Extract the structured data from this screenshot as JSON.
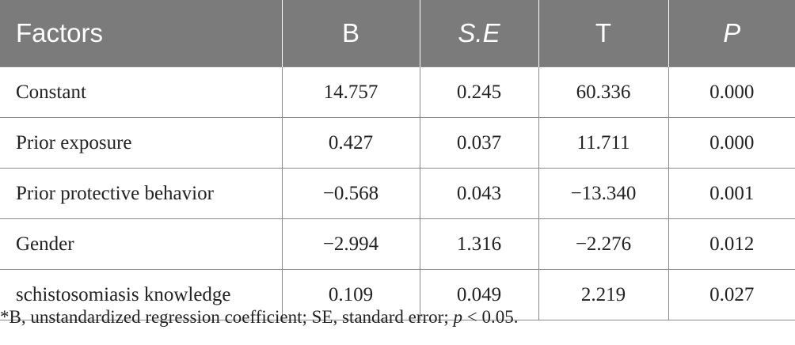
{
  "table": {
    "headers": [
      "Factors",
      "B",
      "S.E",
      "T",
      "P"
    ],
    "rows": [
      [
        "Constant",
        "14.757",
        "0.245",
        "60.336",
        "0.000"
      ],
      [
        "Prior exposure",
        "0.427",
        "0.037",
        "11.711",
        "0.000"
      ],
      [
        "Prior protective behavior",
        "−0.568",
        "0.043",
        "−13.340",
        "0.001"
      ],
      [
        "Gender",
        "−2.994",
        "1.316",
        "−2.276",
        "0.012"
      ],
      [
        "schistosomiasis knowledge",
        "0.109",
        "0.049",
        "2.219",
        "0.027"
      ]
    ]
  },
  "footnote": {
    "part1": "*B, unstandardized regression coefficient; SE, standard error; ",
    "p_symbol": "p",
    "part2": " < 0.05."
  }
}
